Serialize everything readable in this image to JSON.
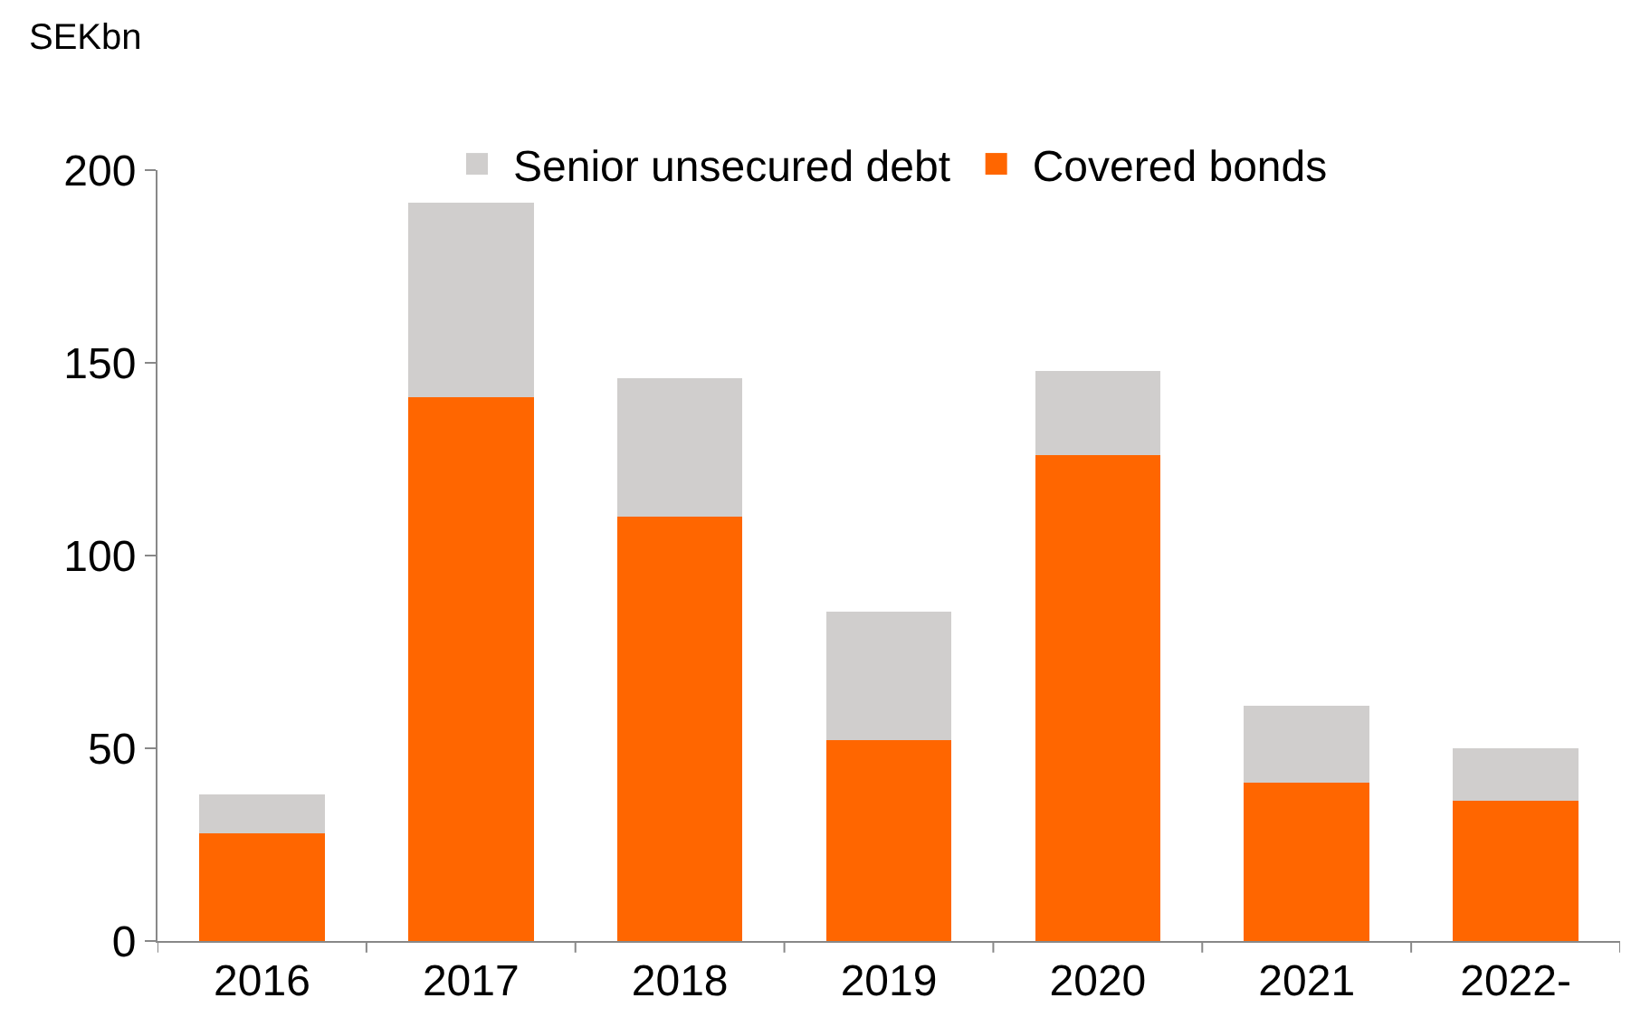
{
  "chart_data": {
    "type": "bar",
    "ylabel": "SEKbn",
    "stacked": true,
    "categories": [
      "2016",
      "2017",
      "2018",
      "2019",
      "2020",
      "2021",
      "2022-"
    ],
    "series": [
      {
        "name": "Covered bonds",
        "color": "#ff6600",
        "values": [
          28,
          141,
          110,
          52,
          126,
          41,
          36.5
        ]
      },
      {
        "name": "Senior unsecured debt",
        "color": "#d0cecd",
        "values": [
          10,
          50.5,
          36,
          33.5,
          22,
          20,
          13.5
        ]
      }
    ],
    "ylim": [
      0,
      200
    ],
    "yticks": [
      0,
      50,
      100,
      150,
      200
    ],
    "grid": false,
    "legend": "top"
  }
}
